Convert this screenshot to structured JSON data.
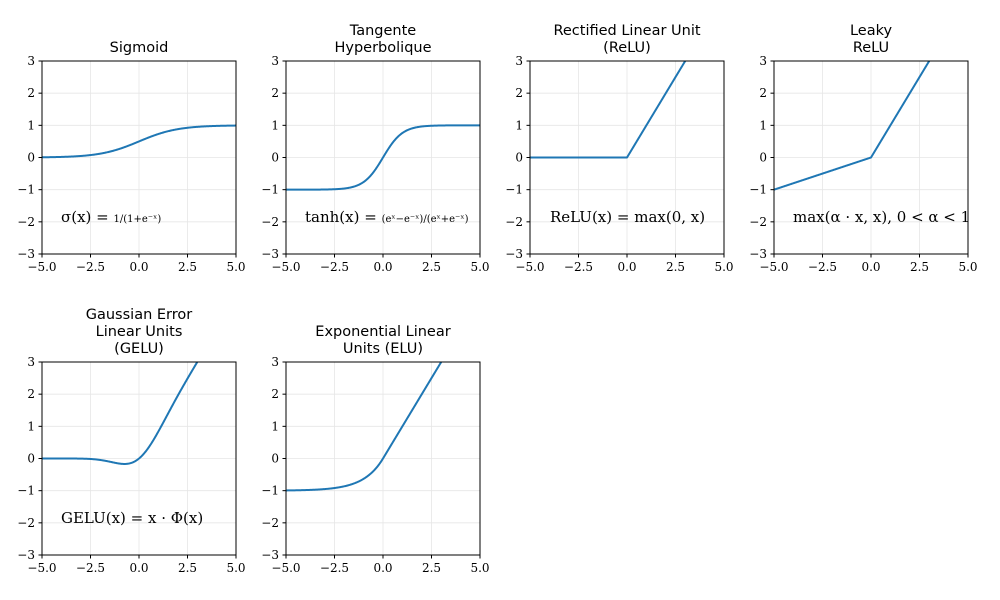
{
  "chart_data": [
    {
      "type": "line",
      "title": [
        "Sigmoid"
      ],
      "formula": "σ(x) = 1/(1+e^−x)",
      "function": "sigmoid",
      "x": [
        -5,
        -4,
        -3,
        -2,
        -1,
        0,
        1,
        2,
        3,
        4,
        5
      ],
      "y": [
        0.007,
        0.018,
        0.047,
        0.119,
        0.269,
        0.5,
        0.731,
        0.881,
        0.953,
        0.982,
        0.993
      ],
      "xlim": [
        -5,
        5
      ],
      "ylim": [
        -3,
        3
      ],
      "xticks": [
        "−5.0",
        "−2.5",
        "0.0",
        "2.5",
        "5.0"
      ],
      "yticks": [
        "3",
        "2",
        "1",
        "0",
        "−1",
        "−2",
        "−3"
      ],
      "grid": true,
      "color": "#1f77b4"
    },
    {
      "type": "line",
      "title": [
        "Tangente",
        "Hyperbolique"
      ],
      "formula": "tanh(x) = (e^x−e^−x)/(e^x+e^−x)",
      "function": "tanh",
      "x": [
        -5,
        -4,
        -3,
        -2,
        -1,
        0,
        1,
        2,
        3,
        4,
        5
      ],
      "y": [
        -1.0,
        -0.999,
        -0.995,
        -0.964,
        -0.762,
        0,
        0.762,
        0.964,
        0.995,
        0.999,
        1.0
      ],
      "xlim": [
        -5,
        5
      ],
      "ylim": [
        -3,
        3
      ],
      "xticks": [
        "−5.0",
        "−2.5",
        "0.0",
        "2.5",
        "5.0"
      ],
      "yticks": [
        "3",
        "2",
        "1",
        "0",
        "−1",
        "−2",
        "−3"
      ],
      "grid": true,
      "color": "#1f77b4"
    },
    {
      "type": "line",
      "title": [
        "Rectified Linear Unit",
        "(ReLU)"
      ],
      "formula": "ReLU(x) = max(0, x)",
      "function": "relu",
      "x": [
        -5,
        -4,
        -3,
        -2,
        -1,
        0,
        1,
        2,
        3
      ],
      "y": [
        0,
        0,
        0,
        0,
        0,
        0,
        1,
        2,
        3
      ],
      "xlim": [
        -5,
        5
      ],
      "ylim": [
        -3,
        3
      ],
      "xticks": [
        "−5.0",
        "−2.5",
        "0.0",
        "2.5",
        "5.0"
      ],
      "yticks": [
        "3",
        "2",
        "1",
        "0",
        "−1",
        "−2",
        "−3"
      ],
      "grid": true,
      "color": "#1f77b4"
    },
    {
      "type": "line",
      "title": [
        "Leaky",
        "ReLU"
      ],
      "formula": "max(α · x, x), 0 < α < 1",
      "function": "leaky_relu",
      "x": [
        -5,
        -4,
        -3,
        -2,
        -1,
        0,
        1,
        2,
        3
      ],
      "y": [
        -1.0,
        -0.8,
        -0.6,
        -0.4,
        -0.2,
        0,
        1,
        2,
        3
      ],
      "xlim": [
        -5,
        5
      ],
      "ylim": [
        -3,
        3
      ],
      "xticks": [
        "−5.0",
        "−2.5",
        "0.0",
        "2.5",
        "5.0"
      ],
      "yticks": [
        "3",
        "2",
        "1",
        "0",
        "−1",
        "−2",
        "−3"
      ],
      "grid": true,
      "color": "#1f77b4"
    },
    {
      "type": "line",
      "title": [
        "Gaussian Error",
        "Linear Units",
        "(GELU)"
      ],
      "formula": "GELU(x) = x · Φ(x)",
      "function": "gelu",
      "x": [
        -5,
        -4,
        -3,
        -2,
        -1,
        -0.75,
        0,
        1,
        2,
        3
      ],
      "y": [
        0,
        0,
        -0.004,
        -0.045,
        -0.159,
        -0.17,
        0,
        0.841,
        1.955,
        2.996
      ],
      "xlim": [
        -5,
        5
      ],
      "ylim": [
        -3,
        3
      ],
      "xticks": [
        "−5.0",
        "−2.5",
        "0.0",
        "2.5",
        "5.0"
      ],
      "yticks": [
        "3",
        "2",
        "1",
        "0",
        "−1",
        "−2",
        "−3"
      ],
      "grid": true,
      "color": "#1f77b4"
    },
    {
      "type": "line",
      "title": [
        "Exponential Linear",
        "Units (ELU)"
      ],
      "formula": "",
      "function": "elu",
      "x": [
        -5,
        -4,
        -3,
        -2,
        -1,
        0,
        1,
        2,
        3
      ],
      "y": [
        -0.993,
        -0.982,
        -0.95,
        -0.865,
        -0.632,
        0,
        1,
        2,
        3
      ],
      "xlim": [
        -5,
        5
      ],
      "ylim": [
        -3,
        3
      ],
      "xticks": [
        "−5.0",
        "−2.5",
        "0.0",
        "2.5",
        "5.0"
      ],
      "yticks": [
        "3",
        "2",
        "1",
        "0",
        "−1",
        "−2",
        "−3"
      ],
      "grid": true,
      "color": "#1f77b4"
    }
  ]
}
